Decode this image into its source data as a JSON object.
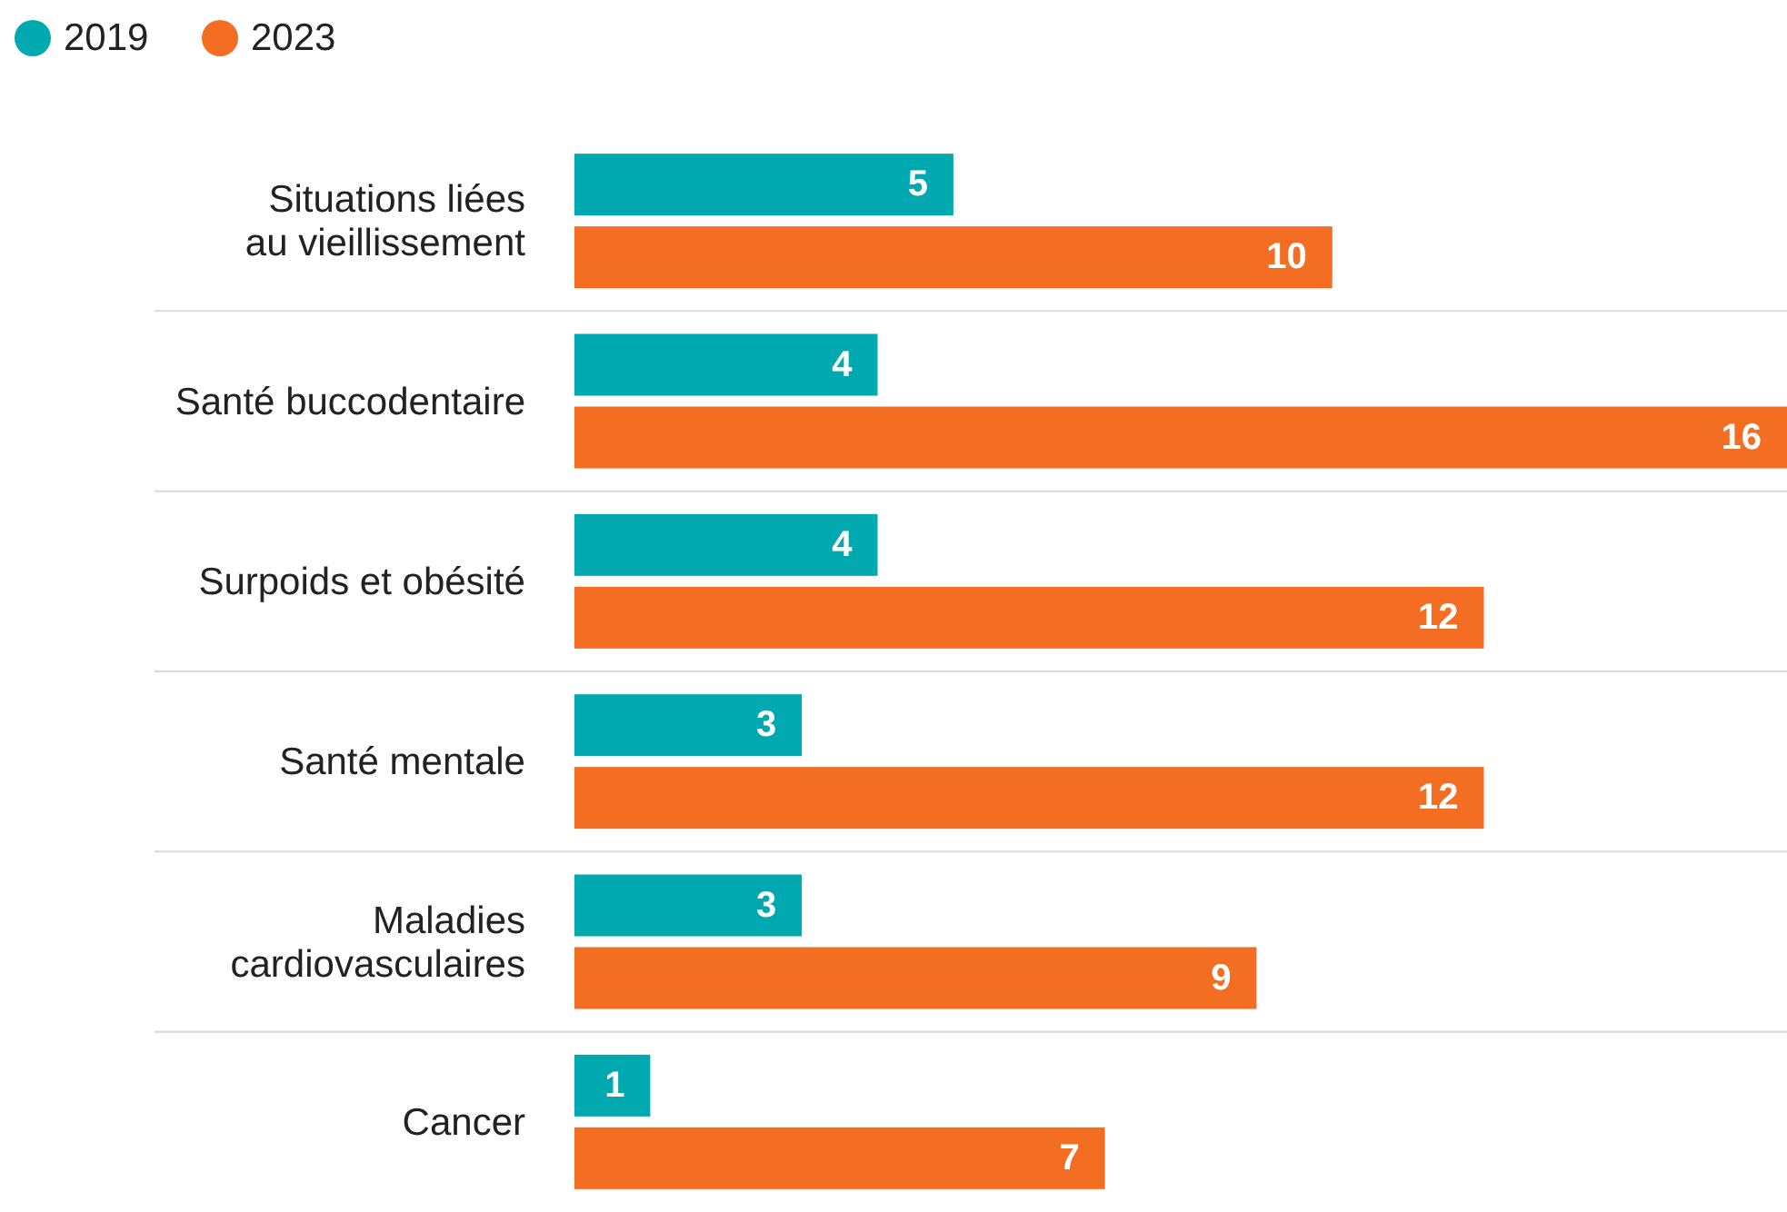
{
  "chart_data": {
    "type": "bar",
    "orientation": "horizontal",
    "categories": [
      "Situations liées au vieillissement",
      "Santé buccodentaire",
      "Surpoids et obésité",
      "Santé mentale",
      "Maladies cardiovasculaires",
      "Cancer"
    ],
    "series": [
      {
        "name": "2019",
        "color": "#00a9b0",
        "values": [
          5,
          4,
          4,
          3,
          3,
          1
        ]
      },
      {
        "name": "2023",
        "color": "#f36d23",
        "values": [
          10,
          16,
          12,
          12,
          9,
          7
        ]
      }
    ],
    "data_labels": true,
    "legend": "top left",
    "tick_labels": "y"
  }
}
